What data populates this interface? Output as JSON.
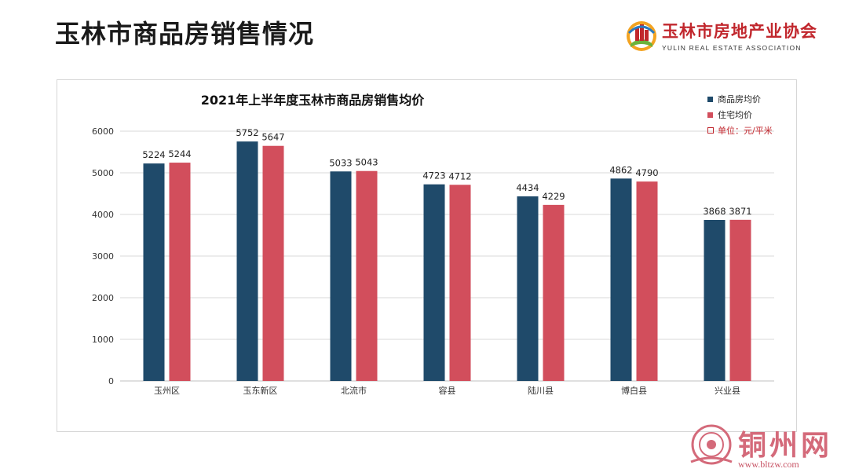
{
  "page": {
    "title": "玉林市商品房销售情况"
  },
  "logo": {
    "name_cn": "玉林市房地产业协会",
    "name_en": "YULIN REAL ESTATE ASSOCIATION"
  },
  "watermark": {
    "text": "铜州网",
    "url": "www.bltzw.com"
  },
  "colors": {
    "series1": "#1f4a6a",
    "series2": "#d24e5c",
    "unit": "#c0262d",
    "grid": "#d9d9d9"
  },
  "chart_data": {
    "type": "bar",
    "title": "2021年上半年度玉林市商品房销售均价",
    "categories": [
      "玉州区",
      "玉东新区",
      "北流市",
      "容县",
      "陆川县",
      "博白县",
      "兴业县"
    ],
    "series": [
      {
        "name": "商品房均价",
        "values": [
          5224,
          5752,
          5033,
          4723,
          4434,
          4862,
          3868
        ]
      },
      {
        "name": "住宅均价",
        "values": [
          5244,
          5647,
          5043,
          4712,
          4229,
          4790,
          3871
        ]
      }
    ],
    "unit_note": "单位：元/平米",
    "ylim": [
      0,
      6000
    ],
    "yticks": [
      0,
      1000,
      2000,
      3000,
      4000,
      5000,
      6000
    ],
    "xlabel": "",
    "ylabel": "",
    "legend": "top-right",
    "grid": true
  }
}
